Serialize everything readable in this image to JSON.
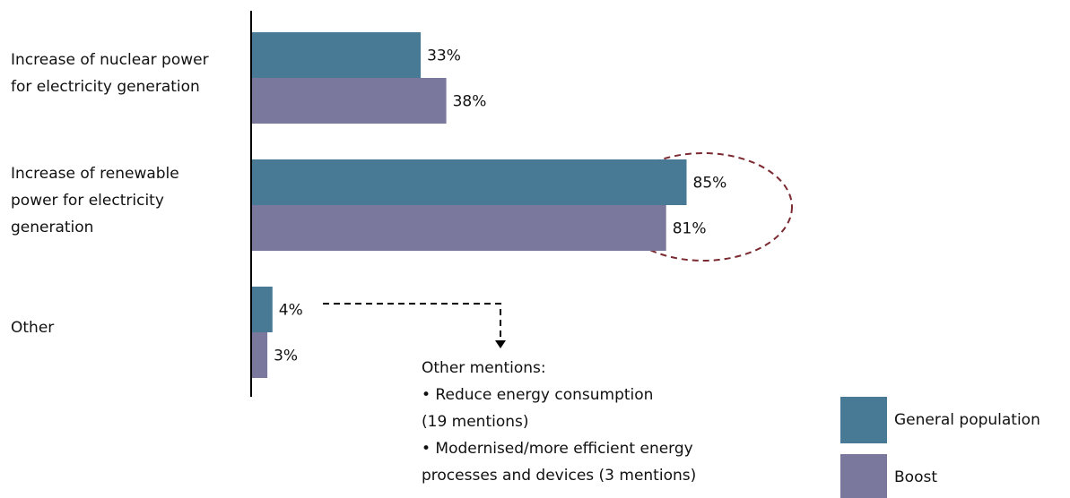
{
  "chart_data": {
    "type": "bar",
    "orientation": "horizontal",
    "categories": [
      "Increase of nuclear power for electricity generation",
      "Increase of renewable power for electricity generation",
      "Other"
    ],
    "series": [
      {
        "name": "General population",
        "color": "#487a96",
        "values": [
          33,
          85,
          4
        ],
        "value_labels": [
          "33%",
          "85%",
          "4%"
        ]
      },
      {
        "name": "Boost",
        "color": "#7b789e",
        "values": [
          38,
          81,
          3
        ],
        "value_labels": [
          "38%",
          "81%",
          "3%"
        ]
      }
    ],
    "xlim": [
      0,
      100
    ],
    "annotation": [
      "Other mentions:",
      "• Reduce energy consumption",
      "(19 mentions)",
      "• Modernised/more efficient energy",
      "processes and devices (3 mentions)"
    ]
  }
}
